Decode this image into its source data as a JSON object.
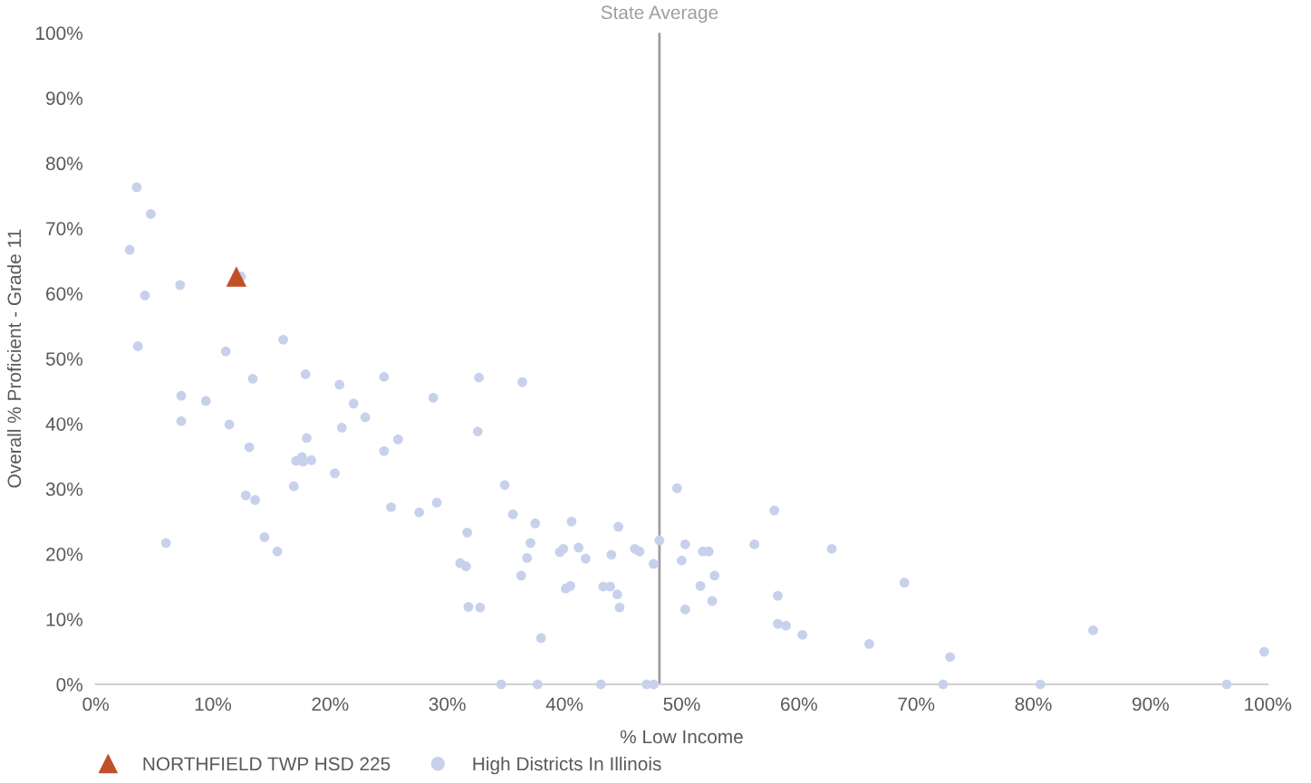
{
  "chart_data": {
    "type": "scatter",
    "xlabel": "% Low Income",
    "ylabel": "Overall % Proficient - Grade 11",
    "xlim": [
      0,
      100
    ],
    "ylim": [
      0,
      100
    ],
    "xticks": [
      {
        "value": 0,
        "label": "0%"
      },
      {
        "value": 10,
        "label": "10%"
      },
      {
        "value": 20,
        "label": "20%"
      },
      {
        "value": 30,
        "label": "30%"
      },
      {
        "value": 40,
        "label": "40%"
      },
      {
        "value": 50,
        "label": "50%"
      },
      {
        "value": 60,
        "label": "60%"
      },
      {
        "value": 70,
        "label": "70%"
      },
      {
        "value": 80,
        "label": "80%"
      },
      {
        "value": 90,
        "label": "90%"
      },
      {
        "value": 100,
        "label": "100%"
      }
    ],
    "yticks": [
      {
        "value": 0,
        "label": "0%"
      },
      {
        "value": 10,
        "label": "10%"
      },
      {
        "value": 20,
        "label": "20%"
      },
      {
        "value": 30,
        "label": "30%"
      },
      {
        "value": 40,
        "label": "40%"
      },
      {
        "value": 50,
        "label": "50%"
      },
      {
        "value": 60,
        "label": "60%"
      },
      {
        "value": 70,
        "label": "70%"
      },
      {
        "value": 80,
        "label": "80%"
      },
      {
        "value": 90,
        "label": "90%"
      },
      {
        "value": 100,
        "label": "100%"
      }
    ],
    "grid": false,
    "legend": "bottom left",
    "ref_lines": [
      {
        "axis": "x",
        "value": 48.1,
        "label": "State Average",
        "color": "#9e9e9e",
        "line_style": "solid"
      }
    ],
    "series": [
      {
        "name": "High Districts In Illinois",
        "color": "#c8d1ec",
        "marker": "circle",
        "x": [
          3.5,
          4.7,
          2.9,
          7.2,
          4.2,
          12.4,
          3.6,
          11.1,
          16.0,
          7.3,
          9.4,
          13.4,
          17.9,
          24.6,
          32.7,
          36.4,
          20.8,
          28.8,
          22.0,
          7.3,
          11.4,
          23.0,
          21.0,
          32.6,
          18.0,
          25.8,
          13.1,
          24.6,
          17.1,
          17.6,
          17.7,
          18.4,
          20.4,
          34.9,
          49.6,
          16.9,
          12.8,
          13.6,
          29.1,
          25.2,
          35.6,
          27.6,
          57.9,
          37.5,
          40.6,
          44.6,
          31.7,
          14.4,
          6.0,
          37.1,
          48.1,
          50.3,
          56.2,
          62.8,
          15.5,
          39.6,
          39.9,
          41.2,
          44.0,
          46.0,
          46.4,
          51.8,
          52.3,
          36.8,
          41.8,
          50.0,
          47.6,
          31.1,
          31.6,
          36.3,
          52.8,
          51.6,
          69.0,
          40.1,
          40.5,
          43.3,
          43.9,
          44.5,
          58.2,
          52.6,
          31.8,
          32.8,
          44.7,
          50.3,
          58.2,
          58.9,
          60.3,
          85.1,
          38.0,
          66.0,
          72.9,
          99.7,
          34.6,
          37.7,
          43.1,
          47.0,
          47.6,
          72.3,
          80.6,
          96.5
        ],
        "values": [
          76.3,
          72.2,
          66.7,
          61.3,
          59.7,
          62.6,
          51.9,
          51.1,
          52.9,
          44.3,
          43.5,
          46.9,
          47.6,
          47.2,
          47.1,
          46.4,
          46.0,
          44.0,
          43.1,
          40.4,
          39.9,
          41.0,
          39.4,
          38.8,
          37.8,
          37.6,
          36.4,
          35.8,
          34.3,
          34.9,
          34.2,
          34.4,
          32.4,
          30.6,
          30.1,
          30.4,
          29.0,
          28.3,
          27.9,
          27.2,
          26.1,
          26.4,
          26.7,
          24.7,
          25.0,
          24.2,
          23.3,
          22.6,
          21.7,
          21.7,
          22.1,
          21.5,
          21.5,
          20.8,
          20.4,
          20.3,
          20.8,
          21.0,
          19.9,
          20.8,
          20.4,
          20.4,
          20.4,
          19.4,
          19.3,
          19.0,
          18.5,
          18.6,
          18.1,
          16.7,
          16.7,
          15.1,
          15.6,
          14.7,
          15.1,
          15.0,
          15.0,
          13.8,
          13.6,
          12.8,
          11.9,
          11.8,
          11.8,
          11.5,
          9.3,
          9.0,
          7.6,
          8.3,
          7.1,
          6.2,
          4.2,
          5.0,
          0,
          0,
          0,
          0,
          0,
          0,
          0,
          0
        ]
      },
      {
        "name": "NORTHFIELD TWP HSD 225",
        "color": "#c0502a",
        "marker": "triangle",
        "x": [
          12.0
        ],
        "values": [
          62.6
        ]
      }
    ]
  }
}
